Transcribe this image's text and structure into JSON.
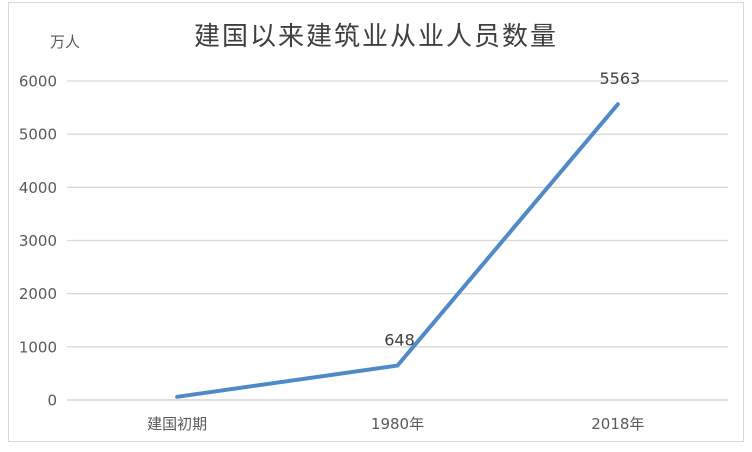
{
  "chart_data": {
    "type": "line",
    "title": "建国以来建筑业从业人员数量",
    "ylabel": "万人",
    "xlabel": "",
    "categories": [
      "建国初期",
      "1980年",
      "2018年"
    ],
    "values": [
      60,
      648,
      5563
    ],
    "data_labels": [
      "",
      "648",
      "5563"
    ],
    "ylim": [
      0,
      6000
    ],
    "ytick_interval": 1000,
    "grid": "horizontal",
    "legend": "none"
  },
  "colors": {
    "line": "#5089c7",
    "gridline": "#d9d9d9",
    "axis_line": "#cccccc",
    "tick_text": "#595959",
    "label_text": "#404040",
    "title_text": "#3f3f3f",
    "frame_border": "#d9d9d9",
    "background": "#ffffff"
  }
}
